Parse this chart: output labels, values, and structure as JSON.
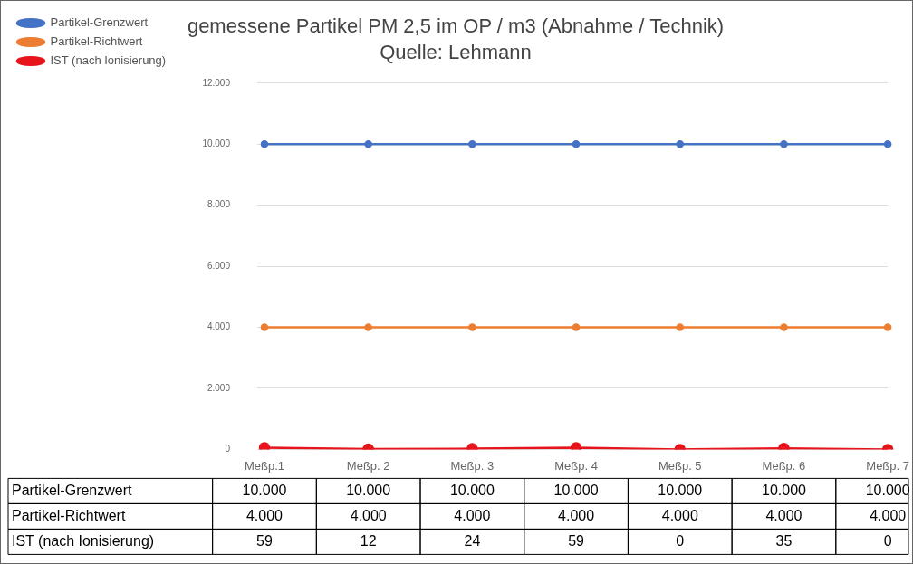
{
  "chart_data": {
    "type": "line",
    "title": "gemessene Partikel PM 2,5 im OP / m3 (Abnahme / Technik)",
    "subtitle": "Quelle: Lehmann",
    "categories": [
      "Meßp.1",
      "Meßp. 2",
      "Meßp. 3",
      "Meßp. 4",
      "Meßp. 5",
      "Meßp. 6",
      "Meßp. 7"
    ],
    "series": [
      {
        "name": "Partikel-Grenzwert",
        "color": "#4472c4",
        "values": [
          10000,
          10000,
          10000,
          10000,
          10000,
          10000,
          10000
        ],
        "value_labels": [
          "10.000",
          "10.000",
          "10.000",
          "10.000",
          "10.000",
          "10.000",
          "10.000"
        ]
      },
      {
        "name": "Partikel-Richtwert",
        "color": "#ed7d31",
        "values": [
          4000,
          4000,
          4000,
          4000,
          4000,
          4000,
          4000
        ],
        "value_labels": [
          "4.000",
          "4.000",
          "4.000",
          "4.000",
          "4.000",
          "4.000",
          "4.000"
        ]
      },
      {
        "name": "IST (nach Ionisierung)",
        "color": "#e8141b",
        "values": [
          59,
          12,
          24,
          59,
          0,
          35,
          0
        ],
        "value_labels": [
          "59",
          "12",
          "24",
          "59",
          "0",
          "35",
          "0"
        ]
      }
    ],
    "ylim": [
      0,
      12000
    ],
    "yticks": [
      {
        "value": 0,
        "label": "0"
      },
      {
        "value": 2000,
        "label": "2.000"
      },
      {
        "value": 4000,
        "label": "4.000"
      },
      {
        "value": 6000,
        "label": "6.000"
      },
      {
        "value": 8000,
        "label": "8.000"
      },
      {
        "value": 10000,
        "label": "10.000"
      },
      {
        "value": 12000,
        "label": "12.000"
      }
    ],
    "grid": "y",
    "legend": "top left",
    "marker": "circle",
    "line_style": "solid"
  }
}
